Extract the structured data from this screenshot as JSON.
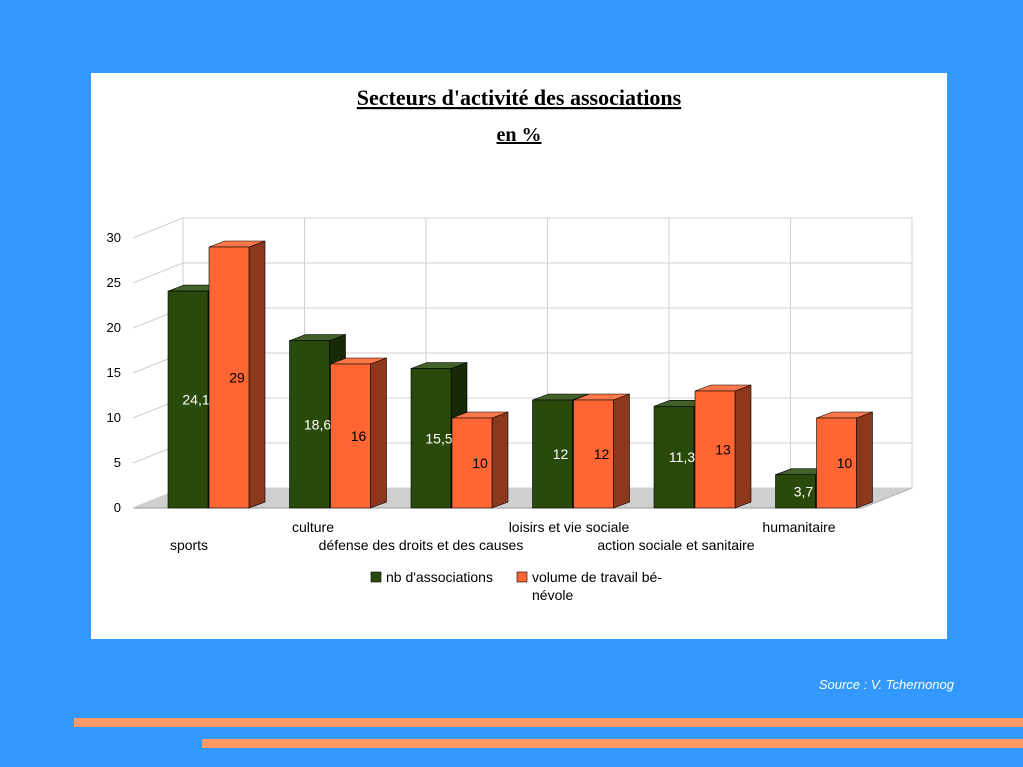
{
  "source": "Source : V. Tchernonog",
  "colors": {
    "background": "#3399ff",
    "stripe": "#ff9966",
    "series_green": "#2a4a0c",
    "series_orange": "#ff6633"
  },
  "chart_data": {
    "type": "bar",
    "title": "Secteurs d'activité des associations",
    "subtitle": "en %",
    "xlabel": "",
    "ylabel": "",
    "ylim": [
      0,
      30
    ],
    "yticks": [
      0,
      5,
      10,
      15,
      20,
      25,
      30
    ],
    "grid": true,
    "legend_position": "bottom",
    "categories": [
      "sports",
      "culture",
      "défense des droits et des causes",
      "loisirs et vie sociale",
      "action sociale et sanitaire",
      "humanitaire"
    ],
    "series": [
      {
        "name": "nb d'associations",
        "color": "#2a4a0c",
        "values": [
          24.1,
          18.6,
          15.5,
          12,
          11.3,
          3.7
        ],
        "labels": [
          "24,1",
          "18,6",
          "15,5",
          "12",
          "11,3",
          "3,7"
        ]
      },
      {
        "name": "volume de travail bé-\nnévole",
        "color": "#ff6633",
        "values": [
          29,
          16,
          10,
          12,
          13,
          10
        ],
        "labels": [
          "29",
          "16",
          "10",
          "12",
          "13",
          "10"
        ]
      }
    ]
  }
}
